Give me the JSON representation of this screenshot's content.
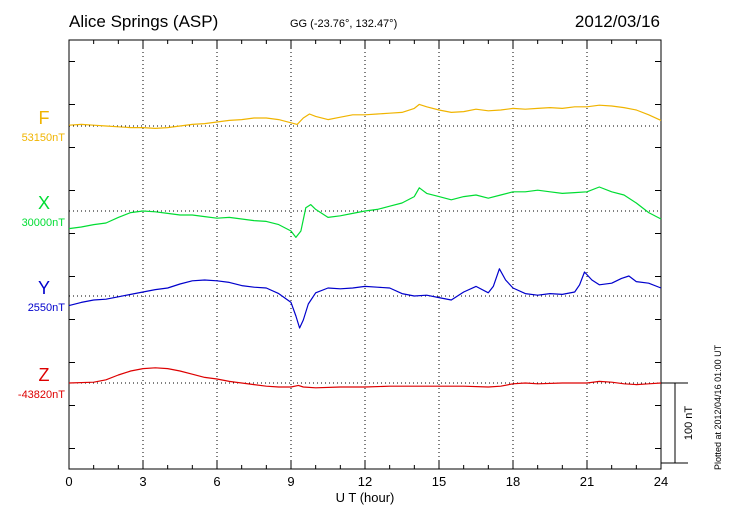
{
  "header": {
    "station": "Alice Springs (ASP)",
    "coords": "GG (-23.76°, 132.47°)",
    "date": "2012/03/16"
  },
  "footer": {
    "plotted": "Plotted at 2012/04/16 01:00 UT"
  },
  "chart_data": {
    "type": "line",
    "xlabel": "U T (hour)",
    "xlim": [
      0,
      24
    ],
    "xticks": [
      0,
      3,
      6,
      9,
      12,
      15,
      18,
      21,
      24
    ],
    "scale_bar_label": "100 nT",
    "scale_bar_nT": 100,
    "series": [
      {
        "name": "F",
        "baseline_label": "53150nT",
        "color": "#f0b400",
        "points": [
          [
            0,
            1
          ],
          [
            0.5,
            2
          ],
          [
            1,
            1
          ],
          [
            1.5,
            0
          ],
          [
            2,
            -1
          ],
          [
            2.5,
            -2
          ],
          [
            3,
            -2
          ],
          [
            3.5,
            -3
          ],
          [
            4,
            -2
          ],
          [
            4.5,
            0
          ],
          [
            5,
            2
          ],
          [
            5.5,
            3
          ],
          [
            6,
            5
          ],
          [
            6.5,
            7
          ],
          [
            7,
            8
          ],
          [
            7.5,
            10
          ],
          [
            8,
            10
          ],
          [
            8.5,
            8
          ],
          [
            9,
            4
          ],
          [
            9.25,
            2
          ],
          [
            9.5,
            10
          ],
          [
            9.75,
            15
          ],
          [
            10,
            12
          ],
          [
            10.5,
            8
          ],
          [
            11,
            11
          ],
          [
            11.5,
            14
          ],
          [
            12,
            14
          ],
          [
            12.5,
            15
          ],
          [
            13,
            16
          ],
          [
            13.5,
            17
          ],
          [
            14,
            22
          ],
          [
            14.2,
            27
          ],
          [
            14.5,
            24
          ],
          [
            15,
            20
          ],
          [
            15.5,
            17
          ],
          [
            16,
            18
          ],
          [
            16.5,
            21
          ],
          [
            17,
            19
          ],
          [
            17.5,
            20
          ],
          [
            18,
            22
          ],
          [
            18.5,
            21
          ],
          [
            19,
            22
          ],
          [
            19.5,
            23
          ],
          [
            20,
            22
          ],
          [
            20.5,
            24
          ],
          [
            21,
            24
          ],
          [
            21.5,
            26
          ],
          [
            22,
            25
          ],
          [
            22.5,
            23
          ],
          [
            23,
            20
          ],
          [
            23.5,
            14
          ],
          [
            24,
            7
          ]
        ]
      },
      {
        "name": "X",
        "baseline_label": "30000nT",
        "color": "#00dd33",
        "points": [
          [
            0,
            -22
          ],
          [
            0.5,
            -20
          ],
          [
            1,
            -17
          ],
          [
            1.5,
            -15
          ],
          [
            2,
            -8
          ],
          [
            2.5,
            -2
          ],
          [
            3,
            0
          ],
          [
            3.5,
            -1
          ],
          [
            4,
            -3
          ],
          [
            4.5,
            -5
          ],
          [
            5,
            -5
          ],
          [
            5.5,
            -7
          ],
          [
            6,
            -9
          ],
          [
            6.5,
            -8
          ],
          [
            7,
            -10
          ],
          [
            7.5,
            -12
          ],
          [
            8,
            -13
          ],
          [
            8.5,
            -17
          ],
          [
            9,
            -25
          ],
          [
            9.2,
            -33
          ],
          [
            9.4,
            -25
          ],
          [
            9.6,
            4
          ],
          [
            9.8,
            8
          ],
          [
            10,
            2
          ],
          [
            10.5,
            -8
          ],
          [
            11,
            -6
          ],
          [
            11.5,
            -3
          ],
          [
            12,
            0
          ],
          [
            12.5,
            2
          ],
          [
            13,
            6
          ],
          [
            13.5,
            10
          ],
          [
            14,
            18
          ],
          [
            14.2,
            29
          ],
          [
            14.5,
            22
          ],
          [
            15,
            18
          ],
          [
            15.5,
            14
          ],
          [
            16,
            18
          ],
          [
            16.5,
            20
          ],
          [
            17,
            16
          ],
          [
            17.5,
            20
          ],
          [
            18,
            24
          ],
          [
            18.5,
            24
          ],
          [
            19,
            26
          ],
          [
            19.5,
            24
          ],
          [
            20,
            22
          ],
          [
            20.5,
            23
          ],
          [
            21,
            24
          ],
          [
            21.5,
            30
          ],
          [
            22,
            24
          ],
          [
            22.5,
            20
          ],
          [
            23,
            10
          ],
          [
            23.5,
            -2
          ],
          [
            24,
            -10
          ]
        ]
      },
      {
        "name": "Y",
        "baseline_label": "2550nT",
        "color": "#0000cc",
        "points": [
          [
            0,
            -12
          ],
          [
            0.5,
            -8
          ],
          [
            1,
            -5
          ],
          [
            1.5,
            -4
          ],
          [
            2,
            -1
          ],
          [
            2.5,
            2
          ],
          [
            3,
            5
          ],
          [
            3.5,
            8
          ],
          [
            4,
            10
          ],
          [
            4.5,
            15
          ],
          [
            5,
            19
          ],
          [
            5.5,
            20
          ],
          [
            6,
            19
          ],
          [
            6.5,
            17
          ],
          [
            7,
            13
          ],
          [
            7.5,
            11
          ],
          [
            8,
            10
          ],
          [
            8.5,
            3
          ],
          [
            9,
            -8
          ],
          [
            9.2,
            -25
          ],
          [
            9.35,
            -40
          ],
          [
            9.5,
            -30
          ],
          [
            9.7,
            -10
          ],
          [
            10,
            4
          ],
          [
            10.5,
            10
          ],
          [
            11,
            9
          ],
          [
            11.5,
            10
          ],
          [
            12,
            12
          ],
          [
            12.5,
            11
          ],
          [
            13,
            10
          ],
          [
            13.5,
            3
          ],
          [
            14,
            0
          ],
          [
            14.5,
            1
          ],
          [
            15,
            -2
          ],
          [
            15.5,
            -5
          ],
          [
            16,
            5
          ],
          [
            16.5,
            12
          ],
          [
            17,
            4
          ],
          [
            17.2,
            12
          ],
          [
            17.45,
            34
          ],
          [
            17.7,
            20
          ],
          [
            18,
            10
          ],
          [
            18.5,
            3
          ],
          [
            19,
            1
          ],
          [
            19.5,
            3
          ],
          [
            20,
            2
          ],
          [
            20.5,
            5
          ],
          [
            20.7,
            14
          ],
          [
            20.9,
            30
          ],
          [
            21.2,
            20
          ],
          [
            21.5,
            14
          ],
          [
            22,
            16
          ],
          [
            22.4,
            22
          ],
          [
            22.7,
            25
          ],
          [
            23,
            18
          ],
          [
            23.5,
            16
          ],
          [
            24,
            10
          ]
        ]
      },
      {
        "name": "Z",
        "baseline_label": "-43820nT",
        "color": "#dd0000",
        "points": [
          [
            0,
            0
          ],
          [
            1,
            1
          ],
          [
            1.5,
            4
          ],
          [
            2,
            10
          ],
          [
            2.5,
            15
          ],
          [
            3,
            18
          ],
          [
            3.5,
            19
          ],
          [
            4,
            18
          ],
          [
            4.5,
            15
          ],
          [
            5,
            11
          ],
          [
            5.5,
            7
          ],
          [
            6,
            5
          ],
          [
            6.5,
            2
          ],
          [
            7,
            0
          ],
          [
            7.5,
            -2
          ],
          [
            8,
            -4
          ],
          [
            8.5,
            -5
          ],
          [
            9,
            -5
          ],
          [
            9.3,
            -3
          ],
          [
            9.5,
            -5
          ],
          [
            10,
            -6
          ],
          [
            11,
            -5
          ],
          [
            12,
            -5
          ],
          [
            13,
            -4
          ],
          [
            14,
            -4
          ],
          [
            15,
            -4
          ],
          [
            16,
            -4
          ],
          [
            17,
            -5
          ],
          [
            17.5,
            -4
          ],
          [
            18,
            -1
          ],
          [
            18.5,
            0
          ],
          [
            19,
            -1
          ],
          [
            20,
            0
          ],
          [
            21,
            0
          ],
          [
            21.5,
            2
          ],
          [
            22,
            1
          ],
          [
            22.5,
            -1
          ],
          [
            23,
            -2
          ],
          [
            23.5,
            -1
          ],
          [
            24,
            0
          ]
        ]
      }
    ]
  }
}
